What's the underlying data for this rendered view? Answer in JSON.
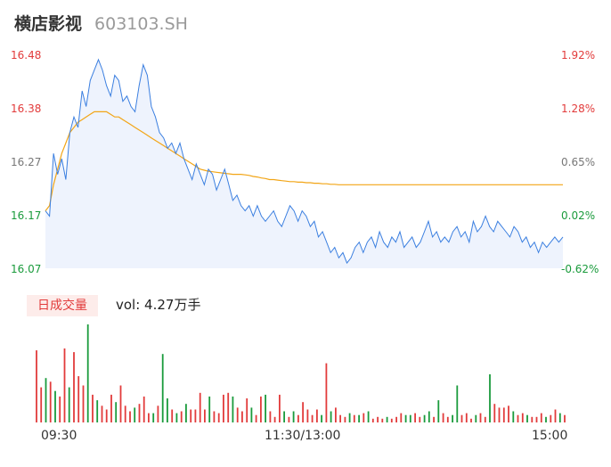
{
  "header": {
    "name": "横店影视",
    "code": "603103.SH"
  },
  "colors": {
    "up": "#e23b3b",
    "down": "#1a9b3c",
    "neutral": "#777777",
    "price_line": "#3b7fe0",
    "avg_line": "#f2a516",
    "price_fill": "#eef3fd"
  },
  "volume": {
    "badge": "日成交量",
    "label": "vol: 4.27万手"
  },
  "chart_data": {
    "type": "line",
    "price_axis": {
      "ticks": [
        "16.48",
        "16.38",
        "16.27",
        "16.17",
        "16.07"
      ],
      "min": 16.07,
      "max": 16.48
    },
    "pct_axis": {
      "ticks": [
        "1.92%",
        "1.28%",
        "0.65%",
        "0.02%",
        "-0.62%"
      ]
    },
    "x_labels": [
      "09:30",
      "11:30/13:00",
      "15:00"
    ],
    "price_series": [
      16.18,
      16.17,
      16.29,
      16.25,
      16.28,
      16.24,
      16.33,
      16.36,
      16.34,
      16.41,
      16.38,
      16.43,
      16.45,
      16.47,
      16.45,
      16.42,
      16.4,
      16.44,
      16.43,
      16.39,
      16.4,
      16.38,
      16.37,
      16.42,
      16.46,
      16.44,
      16.38,
      16.36,
      16.33,
      16.32,
      16.3,
      16.31,
      16.29,
      16.31,
      16.28,
      16.26,
      16.24,
      16.27,
      16.25,
      16.23,
      16.26,
      16.25,
      16.22,
      16.24,
      16.26,
      16.23,
      16.2,
      16.21,
      16.19,
      16.18,
      16.19,
      16.17,
      16.19,
      16.17,
      16.16,
      16.17,
      16.18,
      16.16,
      16.15,
      16.17,
      16.19,
      16.18,
      16.16,
      16.18,
      16.17,
      16.15,
      16.16,
      16.13,
      16.14,
      16.12,
      16.1,
      16.11,
      16.09,
      16.1,
      16.08,
      16.09,
      16.11,
      16.12,
      16.1,
      16.12,
      16.13,
      16.11,
      16.14,
      16.12,
      16.11,
      16.13,
      16.12,
      16.14,
      16.11,
      16.12,
      16.13,
      16.11,
      16.12,
      16.14,
      16.16,
      16.13,
      16.14,
      16.12,
      16.13,
      16.12,
      16.14,
      16.15,
      16.13,
      16.14,
      16.12,
      16.16,
      16.14,
      16.15,
      16.17,
      16.15,
      16.14,
      16.16,
      16.15,
      16.14,
      16.13,
      16.15,
      16.14,
      16.12,
      16.13,
      16.11,
      16.12,
      16.1,
      16.12,
      16.11,
      16.12,
      16.13,
      16.12,
      16.13
    ],
    "avg_series": [
      16.18,
      16.19,
      16.23,
      16.26,
      16.29,
      16.31,
      16.33,
      16.34,
      16.35,
      16.355,
      16.36,
      16.365,
      16.37,
      16.37,
      16.37,
      16.37,
      16.365,
      16.36,
      16.36,
      16.355,
      16.35,
      16.345,
      16.34,
      16.335,
      16.33,
      16.325,
      16.32,
      16.315,
      16.31,
      16.305,
      16.3,
      16.295,
      16.29,
      16.285,
      16.28,
      16.275,
      16.27,
      16.265,
      16.26,
      16.258,
      16.256,
      16.255,
      16.254,
      16.253,
      16.252,
      16.251,
      16.25,
      16.25,
      16.25,
      16.249,
      16.248,
      16.246,
      16.245,
      16.243,
      16.242,
      16.24,
      16.24,
      16.239,
      16.238,
      16.237,
      16.236,
      16.236,
      16.235,
      16.235,
      16.234,
      16.234,
      16.233,
      16.233,
      16.232,
      16.232,
      16.231,
      16.231,
      16.23,
      16.23,
      16.23,
      16.23,
      16.23,
      16.23,
      16.23,
      16.23,
      16.23,
      16.23,
      16.23,
      16.23,
      16.23,
      16.23,
      16.23,
      16.23,
      16.23,
      16.23,
      16.23,
      16.23,
      16.23,
      16.23,
      16.23,
      16.23,
      16.23,
      16.23,
      16.23,
      16.23,
      16.23,
      16.23,
      16.23,
      16.23,
      16.23,
      16.23,
      16.23,
      16.23,
      16.23,
      16.23,
      16.23,
      16.23,
      16.23,
      16.23,
      16.23,
      16.23,
      16.23,
      16.23,
      16.23,
      16.23,
      16.23,
      16.23,
      16.23,
      16.23,
      16.23,
      16.23,
      16.23,
      16.23
    ],
    "volume_series": [
      {
        "v": 78,
        "d": "up"
      },
      {
        "v": 38,
        "d": "up"
      },
      {
        "v": 48,
        "d": "down"
      },
      {
        "v": 44,
        "d": "up"
      },
      {
        "v": 34,
        "d": "down"
      },
      {
        "v": 28,
        "d": "up"
      },
      {
        "v": 80,
        "d": "up"
      },
      {
        "v": 38,
        "d": "down"
      },
      {
        "v": 76,
        "d": "up"
      },
      {
        "v": 50,
        "d": "up"
      },
      {
        "v": 40,
        "d": "up"
      },
      {
        "v": 106,
        "d": "down"
      },
      {
        "v": 30,
        "d": "up"
      },
      {
        "v": 24,
        "d": "down"
      },
      {
        "v": 18,
        "d": "up"
      },
      {
        "v": 14,
        "d": "up"
      },
      {
        "v": 30,
        "d": "up"
      },
      {
        "v": 22,
        "d": "down"
      },
      {
        "v": 40,
        "d": "up"
      },
      {
        "v": 18,
        "d": "up"
      },
      {
        "v": 12,
        "d": "up"
      },
      {
        "v": 16,
        "d": "down"
      },
      {
        "v": 20,
        "d": "up"
      },
      {
        "v": 28,
        "d": "up"
      },
      {
        "v": 10,
        "d": "up"
      },
      {
        "v": 10,
        "d": "down"
      },
      {
        "v": 18,
        "d": "up"
      },
      {
        "v": 74,
        "d": "down"
      },
      {
        "v": 26,
        "d": "down"
      },
      {
        "v": 14,
        "d": "up"
      },
      {
        "v": 10,
        "d": "down"
      },
      {
        "v": 12,
        "d": "up"
      },
      {
        "v": 20,
        "d": "down"
      },
      {
        "v": 14,
        "d": "up"
      },
      {
        "v": 14,
        "d": "up"
      },
      {
        "v": 32,
        "d": "up"
      },
      {
        "v": 14,
        "d": "up"
      },
      {
        "v": 28,
        "d": "down"
      },
      {
        "v": 12,
        "d": "up"
      },
      {
        "v": 10,
        "d": "up"
      },
      {
        "v": 30,
        "d": "up"
      },
      {
        "v": 32,
        "d": "up"
      },
      {
        "v": 28,
        "d": "down"
      },
      {
        "v": 16,
        "d": "up"
      },
      {
        "v": 12,
        "d": "up"
      },
      {
        "v": 26,
        "d": "up"
      },
      {
        "v": 16,
        "d": "down"
      },
      {
        "v": 8,
        "d": "up"
      },
      {
        "v": 28,
        "d": "up"
      },
      {
        "v": 30,
        "d": "down"
      },
      {
        "v": 12,
        "d": "up"
      },
      {
        "v": 6,
        "d": "up"
      },
      {
        "v": 30,
        "d": "up"
      },
      {
        "v": 12,
        "d": "down"
      },
      {
        "v": 6,
        "d": "up"
      },
      {
        "v": 12,
        "d": "down"
      },
      {
        "v": 8,
        "d": "up"
      },
      {
        "v": 22,
        "d": "up"
      },
      {
        "v": 14,
        "d": "up"
      },
      {
        "v": 8,
        "d": "up"
      },
      {
        "v": 14,
        "d": "up"
      },
      {
        "v": 8,
        "d": "down"
      },
      {
        "v": 64,
        "d": "up"
      },
      {
        "v": 12,
        "d": "down"
      },
      {
        "v": 16,
        "d": "up"
      },
      {
        "v": 8,
        "d": "up"
      },
      {
        "v": 6,
        "d": "up"
      },
      {
        "v": 10,
        "d": "down"
      },
      {
        "v": 8,
        "d": "up"
      },
      {
        "v": 8,
        "d": "down"
      },
      {
        "v": 10,
        "d": "up"
      },
      {
        "v": 12,
        "d": "down"
      },
      {
        "v": 4,
        "d": "up"
      },
      {
        "v": 6,
        "d": "up"
      },
      {
        "v": 4,
        "d": "up"
      },
      {
        "v": 6,
        "d": "down"
      },
      {
        "v": 4,
        "d": "up"
      },
      {
        "v": 6,
        "d": "up"
      },
      {
        "v": 10,
        "d": "up"
      },
      {
        "v": 8,
        "d": "down"
      },
      {
        "v": 8,
        "d": "down"
      },
      {
        "v": 10,
        "d": "up"
      },
      {
        "v": 6,
        "d": "up"
      },
      {
        "v": 8,
        "d": "down"
      },
      {
        "v": 12,
        "d": "down"
      },
      {
        "v": 6,
        "d": "up"
      },
      {
        "v": 24,
        "d": "down"
      },
      {
        "v": 10,
        "d": "up"
      },
      {
        "v": 6,
        "d": "up"
      },
      {
        "v": 8,
        "d": "down"
      },
      {
        "v": 40,
        "d": "down"
      },
      {
        "v": 8,
        "d": "up"
      },
      {
        "v": 10,
        "d": "up"
      },
      {
        "v": 4,
        "d": "up"
      },
      {
        "v": 8,
        "d": "down"
      },
      {
        "v": 10,
        "d": "up"
      },
      {
        "v": 6,
        "d": "up"
      },
      {
        "v": 52,
        "d": "down"
      },
      {
        "v": 20,
        "d": "up"
      },
      {
        "v": 16,
        "d": "up"
      },
      {
        "v": 16,
        "d": "up"
      },
      {
        "v": 18,
        "d": "up"
      },
      {
        "v": 12,
        "d": "down"
      },
      {
        "v": 8,
        "d": "up"
      },
      {
        "v": 10,
        "d": "up"
      },
      {
        "v": 8,
        "d": "down"
      },
      {
        "v": 6,
        "d": "up"
      },
      {
        "v": 6,
        "d": "up"
      },
      {
        "v": 10,
        "d": "up"
      },
      {
        "v": 6,
        "d": "down"
      },
      {
        "v": 8,
        "d": "up"
      },
      {
        "v": 14,
        "d": "up"
      },
      {
        "v": 10,
        "d": "down"
      },
      {
        "v": 8,
        "d": "up"
      }
    ]
  }
}
